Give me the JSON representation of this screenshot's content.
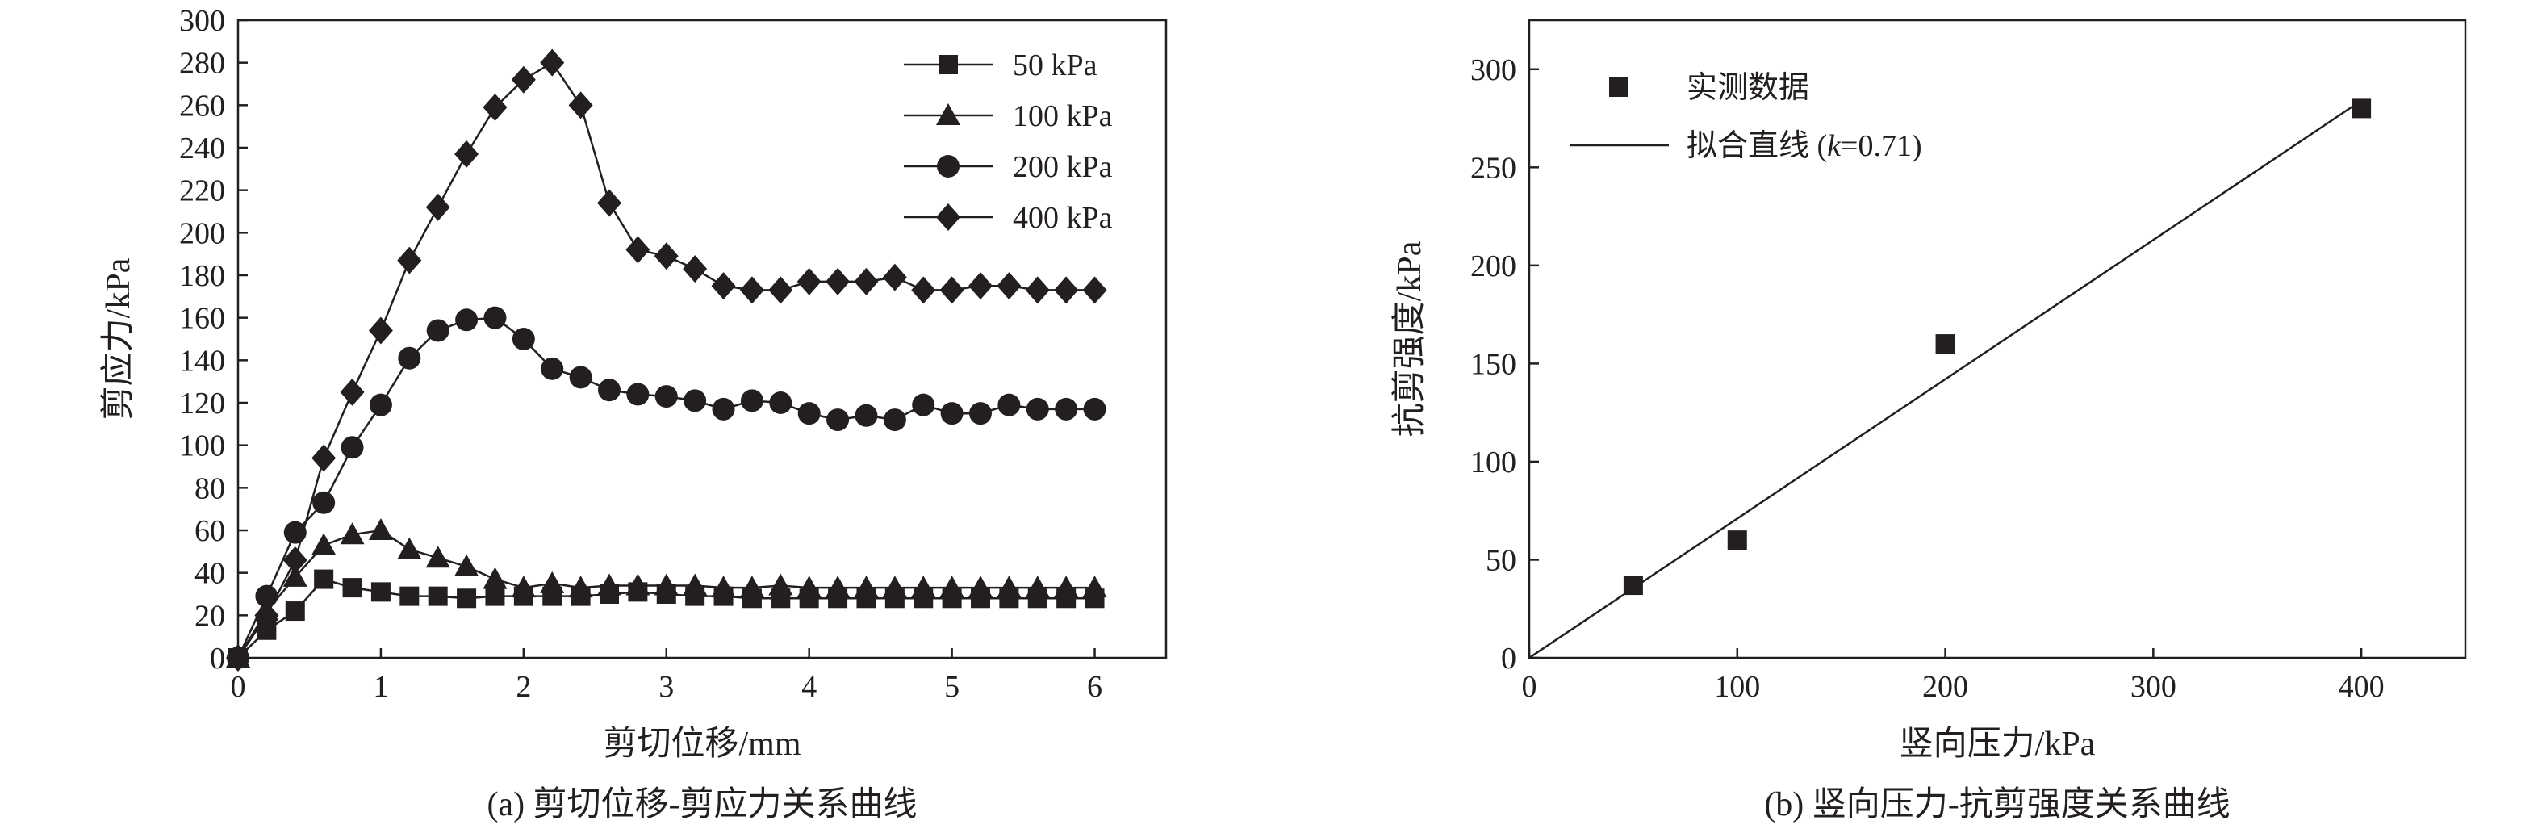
{
  "chart_data": [
    {
      "type": "line",
      "caption": "(a) 剪切位移-剪应力关系曲线",
      "xlabel": "剪切位移/mm",
      "ylabel": "剪应力/kPa",
      "xlim": [
        0,
        6.5
      ],
      "ylim": [
        0,
        300
      ],
      "xticks": [
        "0",
        "1",
        "2",
        "3",
        "4",
        "5",
        "6"
      ],
      "yticks": [
        "0",
        "20",
        "40",
        "60",
        "80",
        "100",
        "120",
        "140",
        "160",
        "180",
        "200",
        "220",
        "240",
        "260",
        "280",
        "300"
      ],
      "legend_position": "top-right",
      "series": [
        {
          "name": "50 kPa",
          "marker": "square",
          "points": [
            [
              0,
              0
            ],
            [
              0.2,
              13
            ],
            [
              0.4,
              22
            ],
            [
              0.6,
              37
            ],
            [
              0.8,
              33
            ],
            [
              1.0,
              31
            ],
            [
              1.2,
              29
            ],
            [
              1.4,
              29
            ],
            [
              1.6,
              28
            ],
            [
              1.8,
              29
            ],
            [
              2.0,
              29
            ],
            [
              2.2,
              29
            ],
            [
              2.4,
              29
            ],
            [
              2.6,
              30
            ],
            [
              2.8,
              31
            ],
            [
              3.0,
              30
            ],
            [
              3.2,
              29
            ],
            [
              3.4,
              29
            ],
            [
              3.6,
              28
            ],
            [
              3.8,
              28
            ],
            [
              4.0,
              28
            ],
            [
              4.2,
              28
            ],
            [
              4.4,
              28
            ],
            [
              4.6,
              28
            ],
            [
              4.8,
              28
            ],
            [
              5.0,
              28
            ],
            [
              5.2,
              28
            ],
            [
              5.4,
              28
            ],
            [
              5.6,
              28
            ],
            [
              5.8,
              28
            ],
            [
              6.0,
              28
            ]
          ]
        },
        {
          "name": "100 kPa",
          "marker": "triangle",
          "points": [
            [
              0,
              0
            ],
            [
              0.2,
              22
            ],
            [
              0.4,
              38
            ],
            [
              0.6,
              53
            ],
            [
              0.8,
              58
            ],
            [
              1.0,
              60
            ],
            [
              1.2,
              51
            ],
            [
              1.4,
              47
            ],
            [
              1.6,
              43
            ],
            [
              1.8,
              37
            ],
            [
              2.0,
              33
            ],
            [
              2.2,
              35
            ],
            [
              2.4,
              33
            ],
            [
              2.6,
              34
            ],
            [
              2.8,
              34
            ],
            [
              3.0,
              34
            ],
            [
              3.2,
              34
            ],
            [
              3.4,
              33
            ],
            [
              3.6,
              33
            ],
            [
              3.8,
              34
            ],
            [
              4.0,
              33
            ],
            [
              4.2,
              33
            ],
            [
              4.4,
              33
            ],
            [
              4.6,
              33
            ],
            [
              4.8,
              33
            ],
            [
              5.0,
              33
            ],
            [
              5.2,
              33
            ],
            [
              5.4,
              33
            ],
            [
              5.6,
              33
            ],
            [
              5.8,
              33
            ],
            [
              6.0,
              33
            ]
          ]
        },
        {
          "name": "200 kPa",
          "marker": "circle",
          "points": [
            [
              0,
              0
            ],
            [
              0.2,
              29
            ],
            [
              0.4,
              59
            ],
            [
              0.6,
              73
            ],
            [
              0.8,
              99
            ],
            [
              1.0,
              119
            ],
            [
              1.2,
              141
            ],
            [
              1.4,
              154
            ],
            [
              1.6,
              159
            ],
            [
              1.8,
              160
            ],
            [
              2.0,
              150
            ],
            [
              2.2,
              136
            ],
            [
              2.4,
              132
            ],
            [
              2.6,
              126
            ],
            [
              2.8,
              124
            ],
            [
              3.0,
              123
            ],
            [
              3.2,
              121
            ],
            [
              3.4,
              117
            ],
            [
              3.6,
              121
            ],
            [
              3.8,
              120
            ],
            [
              4.0,
              115
            ],
            [
              4.2,
              112
            ],
            [
              4.4,
              114
            ],
            [
              4.6,
              112
            ],
            [
              4.8,
              119
            ],
            [
              5.0,
              115
            ],
            [
              5.2,
              115
            ],
            [
              5.4,
              119
            ],
            [
              5.6,
              117
            ],
            [
              5.8,
              117
            ],
            [
              6.0,
              117
            ]
          ]
        },
        {
          "name": "400 kPa",
          "marker": "diamond",
          "points": [
            [
              0,
              0
            ],
            [
              0.2,
              20
            ],
            [
              0.4,
              46
            ],
            [
              0.6,
              94
            ],
            [
              0.8,
              125
            ],
            [
              1.0,
              154
            ],
            [
              1.2,
              187
            ],
            [
              1.4,
              212
            ],
            [
              1.6,
              237
            ],
            [
              1.8,
              259
            ],
            [
              2.0,
              272
            ],
            [
              2.2,
              280
            ],
            [
              2.4,
              260
            ],
            [
              2.6,
              214
            ],
            [
              2.8,
              192
            ],
            [
              3.0,
              189
            ],
            [
              3.2,
              183
            ],
            [
              3.4,
              175
            ],
            [
              3.6,
              173
            ],
            [
              3.8,
              173
            ],
            [
              4.0,
              177
            ],
            [
              4.2,
              177
            ],
            [
              4.4,
              177
            ],
            [
              4.6,
              179
            ],
            [
              4.8,
              173
            ],
            [
              5.0,
              173
            ],
            [
              5.2,
              175
            ],
            [
              5.4,
              175
            ],
            [
              5.6,
              173
            ],
            [
              5.8,
              173
            ],
            [
              6.0,
              173
            ]
          ]
        }
      ]
    },
    {
      "type": "scatter",
      "caption": "(b) 竖向压力-抗剪强度关系曲线",
      "xlabel": "竖向压力/kPa",
      "ylabel": "抗剪强度/kPa",
      "xlim": [
        0,
        450
      ],
      "ylim": [
        0,
        325
      ],
      "xticks": [
        "0",
        "100",
        "200",
        "300",
        "400"
      ],
      "yticks": [
        "0",
        "50",
        "100",
        "150",
        "200",
        "250",
        "300"
      ],
      "legend_position": "top-left",
      "scatter_name": "实测数据",
      "points": [
        [
          50,
          37
        ],
        [
          100,
          60
        ],
        [
          200,
          160
        ],
        [
          400,
          280
        ]
      ],
      "fit_line": {
        "label_prefix": "拟合直线 (",
        "label_k": "k",
        "label_suffix": "=0.71)",
        "slope": 0.71,
        "x_range": [
          0,
          400
        ]
      }
    }
  ]
}
